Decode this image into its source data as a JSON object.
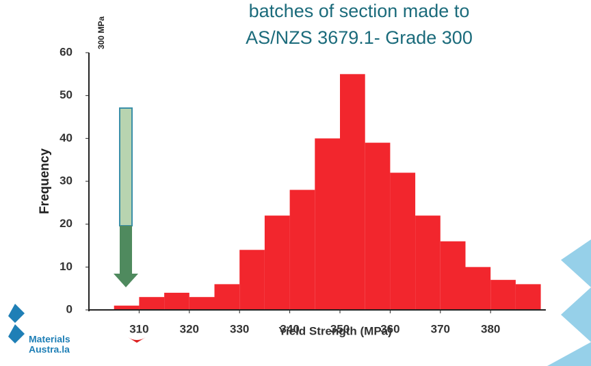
{
  "chart_data": {
    "type": "histogram",
    "title": [
      "batches of section made to",
      "AS/NZS 3679.1- Grade 300"
    ],
    "ylabel": "Frequency",
    "xlabel": "Yield Strength (MPa)",
    "annotation": "300 MPa",
    "bins": [
      305,
      310,
      315,
      320,
      325,
      330,
      335,
      340,
      345,
      350,
      355,
      360,
      365,
      370,
      375,
      380,
      385,
      390
    ],
    "values": [
      1,
      3,
      4,
      3,
      6,
      14,
      22,
      28,
      40,
      55,
      39,
      32,
      22,
      16,
      10,
      7,
      6
    ],
    "color": "#f2262d",
    "xlim": [
      300,
      391
    ],
    "xticks": [
      310,
      320,
      330,
      340,
      350,
      360,
      370,
      380
    ],
    "ylim": [
      0,
      60
    ],
    "yticks": [
      0,
      10,
      20,
      30,
      40,
      50,
      60
    ]
  },
  "logo": {
    "text": [
      "Materials",
      "Austra.la"
    ]
  }
}
